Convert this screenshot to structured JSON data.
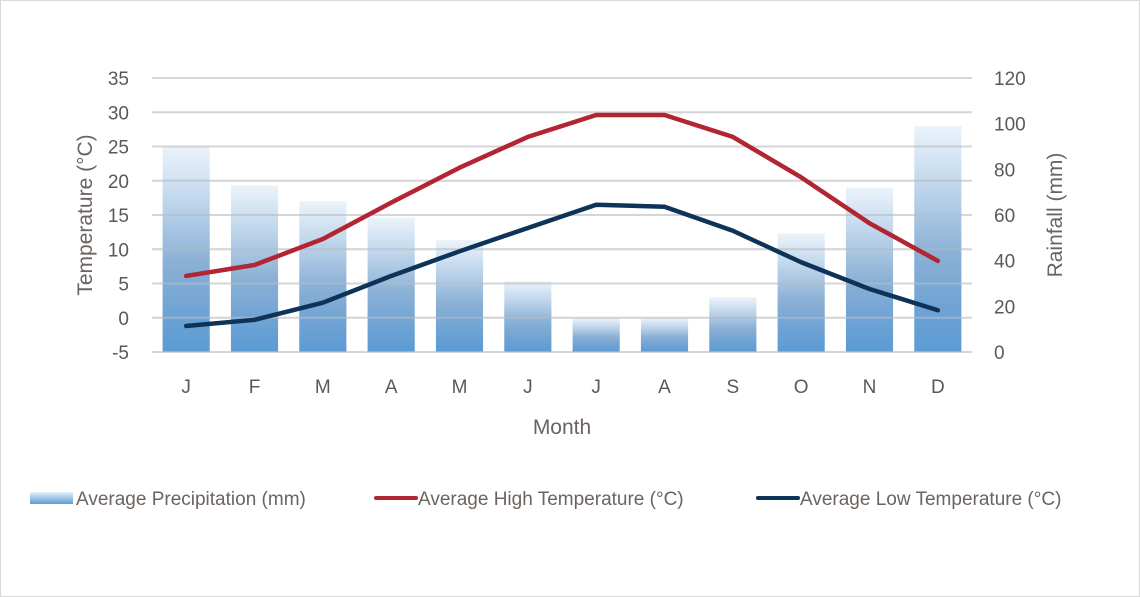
{
  "chart_data": {
    "type": "bar+line",
    "title": "",
    "xlabel": "Month",
    "ylabel_left": "Temperature (°C)",
    "ylabel_right": "Rainfall (mm)",
    "categories": [
      "J",
      "F",
      "M",
      "A",
      "M",
      "J",
      "J",
      "A",
      "S",
      "O",
      "N",
      "D"
    ],
    "y_left": {
      "min": -5,
      "max": 35,
      "step": 5,
      "ticks": [
        "35",
        "30",
        "25",
        "20",
        "15",
        "10",
        "5",
        "0",
        "-5"
      ]
    },
    "y_right": {
      "min": 0,
      "max": 120,
      "step": 20,
      "ticks": [
        "120",
        "100",
        "80",
        "60",
        "40",
        "20",
        "0"
      ]
    },
    "grid": true,
    "legend_position": "bottom",
    "series": [
      {
        "name": "Average Precipitation (mm)",
        "type": "bar",
        "axis": "right",
        "color": "#5b9bd5",
        "values": [
          90,
          73,
          66,
          59,
          49,
          31,
          15,
          15,
          24,
          52,
          72,
          99
        ]
      },
      {
        "name": "Average High Temperature (°C)",
        "type": "line",
        "axis": "left",
        "color": "#b22532",
        "values": [
          6.1,
          7.7,
          11.5,
          16.8,
          21.9,
          26.4,
          29.6,
          29.6,
          26.4,
          20.5,
          13.8,
          8.3
        ]
      },
      {
        "name": "Average Low Temperature (°C)",
        "type": "line",
        "axis": "left",
        "color": "#0e3358",
        "values": [
          -1.2,
          -0.3,
          2.2,
          6.1,
          9.7,
          13.1,
          16.5,
          16.2,
          12.7,
          8.1,
          4.2,
          1.1
        ]
      }
    ]
  }
}
